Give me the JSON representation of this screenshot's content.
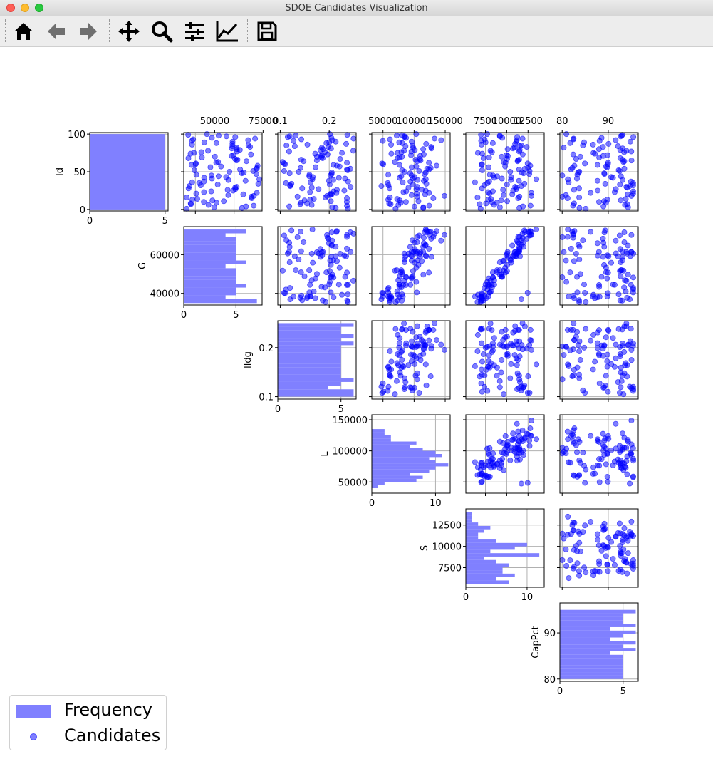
{
  "window": {
    "title": "SDOE Candidates Visualization"
  },
  "toolbar": {
    "buttons": [
      {
        "name": "home",
        "icon": "home-icon"
      },
      {
        "name": "back",
        "icon": "arrow-left-icon"
      },
      {
        "name": "forward",
        "icon": "arrow-right-icon"
      },
      {
        "name": "pan",
        "icon": "move-icon"
      },
      {
        "name": "zoom",
        "icon": "zoom-icon"
      },
      {
        "name": "configure",
        "icon": "sliders-icon"
      },
      {
        "name": "edit-axes",
        "icon": "chart-line-icon"
      },
      {
        "name": "save",
        "icon": "save-icon"
      }
    ]
  },
  "colors": {
    "scatter": "#0000ff",
    "histogram": "#8080ff",
    "grid": "#b0b0b0"
  },
  "legend": {
    "position": "lower-left",
    "items": [
      {
        "label": "Frequency",
        "kind": "histogram"
      },
      {
        "label": "Candidates",
        "kind": "scatter"
      }
    ]
  },
  "chart_data": {
    "type": "scatter",
    "layout": "scatter-matrix-upper-triangle",
    "grid": true,
    "variables": [
      {
        "name": "Id",
        "range": [
          -2,
          102
        ],
        "ticks": [
          0,
          50,
          100
        ]
      },
      {
        "name": "G",
        "range": [
          34000,
          74500
        ],
        "ticks": [
          40000,
          60000
        ],
        "top_ticks": [
          50000,
          75000
        ]
      },
      {
        "name": "lldg",
        "range": [
          0.095,
          0.255
        ],
        "ticks": [
          0.1,
          0.2
        ]
      },
      {
        "name": "L",
        "range": [
          32000,
          158000
        ],
        "ticks": [
          50000,
          100000,
          150000
        ]
      },
      {
        "name": "S",
        "range": [
          5200,
          14400
        ],
        "ticks": [
          7500,
          10000,
          12500
        ]
      },
      {
        "name": "CapPct",
        "range": [
          79.5,
          96.5
        ],
        "ticks": [
          80,
          90
        ]
      }
    ],
    "top_tick_labels": [
      [
        "50000",
        "75000"
      ],
      [
        "0.1",
        "0.2"
      ],
      [
        "50000",
        "100000",
        "150000"
      ],
      [
        "7500",
        "10000",
        "12500"
      ],
      [
        "80",
        "90"
      ]
    ],
    "histograms": [
      {
        "variable": "Id",
        "xlim": [
          0,
          5.2
        ],
        "xticks": [
          0,
          5
        ],
        "edges": [
          0,
          100
        ],
        "counts": [
          5
        ]
      },
      {
        "variable": "G",
        "xlim": [
          0,
          7.5
        ],
        "xticks": [
          0,
          5
        ],
        "edges": [
          35000,
          37000,
          39000,
          41000,
          43000,
          45000,
          47000,
          49000,
          51000,
          53000,
          55000,
          57000,
          59000,
          61000,
          63000,
          65000,
          67000,
          69000,
          71000,
          73000
        ],
        "counts": [
          7,
          4,
          5,
          5,
          6,
          5,
          5,
          5,
          5,
          4,
          6,
          5,
          5,
          5,
          5,
          5,
          5,
          4,
          6
        ]
      },
      {
        "variable": "lldg",
        "xlim": [
          0,
          6.2
        ],
        "xticks": [
          0,
          5
        ],
        "edges": [
          0.1,
          0.1075,
          0.115,
          0.1225,
          0.13,
          0.1375,
          0.145,
          0.1525,
          0.16,
          0.1675,
          0.175,
          0.1825,
          0.19,
          0.1975,
          0.205,
          0.2125,
          0.22,
          0.2275,
          0.235,
          0.2425,
          0.25
        ],
        "counts": [
          6,
          6,
          4,
          5,
          6,
          5,
          5,
          5,
          5,
          5,
          5,
          5,
          5,
          5,
          6,
          5,
          6,
          5,
          5,
          6
        ]
      },
      {
        "variable": "L",
        "xlim": [
          0,
          12.3
        ],
        "xticks": [
          0,
          10
        ],
        "edges": [
          40000,
          45000,
          50000,
          55000,
          60000,
          65000,
          70000,
          75000,
          80000,
          85000,
          90000,
          95000,
          100000,
          105000,
          110000,
          115000,
          120000,
          125000,
          130000,
          135000,
          140000,
          145000,
          150000
        ],
        "counts": [
          1,
          2,
          7,
          8,
          6,
          9,
          10,
          12,
          10,
          9,
          11,
          10,
          8,
          6,
          7,
          3,
          3,
          2,
          2,
          0,
          0,
          0
        ]
      },
      {
        "variable": "S",
        "xlim": [
          0,
          12.8
        ],
        "xticks": [
          0,
          10
        ],
        "edges": [
          5600,
          6000,
          6400,
          6800,
          7200,
          7600,
          8000,
          8400,
          8800,
          9200,
          9600,
          10000,
          10400,
          10800,
          11200,
          11600,
          12000,
          12400,
          12800,
          13200,
          13600,
          14000
        ],
        "counts": [
          7,
          5,
          8,
          6,
          6,
          7,
          5,
          3,
          12,
          4,
          8,
          10,
          5,
          2,
          2,
          3,
          4,
          2,
          1,
          1,
          1
        ]
      },
      {
        "variable": "CapPct",
        "xlim": [
          0,
          6.2
        ],
        "xticks": [
          0,
          5
        ],
        "edges": [
          80,
          80.75,
          81.5,
          82.25,
          83,
          83.75,
          84.5,
          85.25,
          86,
          86.75,
          87.5,
          88.25,
          89,
          89.75,
          90.5,
          91.25,
          92,
          92.75,
          93.5,
          94.25,
          95
        ],
        "counts": [
          5,
          5,
          5,
          5,
          5,
          5,
          5,
          4,
          6,
          5,
          6,
          4,
          5,
          6,
          4,
          6,
          5,
          5,
          5,
          6
        ]
      }
    ]
  }
}
